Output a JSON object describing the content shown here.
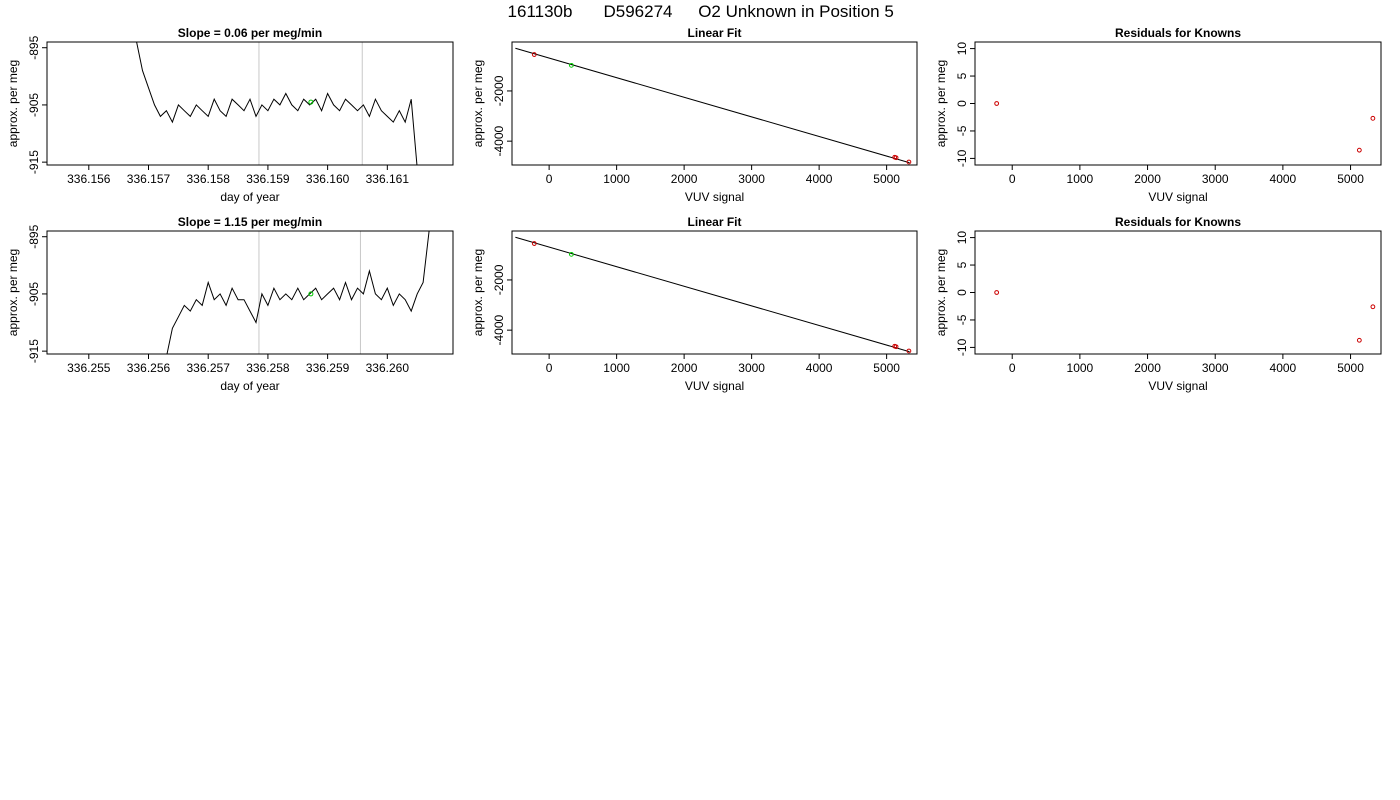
{
  "figure": {
    "title_parts": [
      "161130b",
      "D596274",
      "O2 Unknown in Position  5"
    ]
  },
  "chart_data": [
    {
      "id": "r1c1",
      "type": "line",
      "title": "Slope =  0.06  per meg/min",
      "xlabel": "day of year",
      "ylabel": "approx. per meg",
      "xlim": [
        336.1553,
        336.1621
      ],
      "ylim": [
        -915.5,
        -894
      ],
      "xticks": [
        336.156,
        336.157,
        336.158,
        336.159,
        336.16,
        336.161
      ],
      "xtick_labels": [
        "336.156",
        "336.157",
        "336.158",
        "336.159",
        "336.160",
        "336.161"
      ],
      "yticks": [
        -895,
        -905,
        -915
      ],
      "ytick_labels": [
        "-895",
        "-905",
        "-915"
      ],
      "vlines": [
        336.15885,
        336.16058
      ],
      "highlight": {
        "x": 336.15972,
        "y": -904.5,
        "color": "#00cc00"
      },
      "series": [
        {
          "x": [
            336.1568,
            336.1569,
            336.157,
            336.1571,
            336.1572,
            336.1573,
            336.1574,
            336.1575,
            336.1576,
            336.1577,
            336.1578,
            336.1579,
            336.158,
            336.1581,
            336.1582,
            336.1583,
            336.1584,
            336.1585,
            336.1586,
            336.1587,
            336.1588,
            336.1589,
            336.159,
            336.1591,
            336.1592,
            336.1593,
            336.1594,
            336.1595,
            336.1596,
            336.1597,
            336.1598,
            336.1599,
            336.16,
            336.1601,
            336.1602,
            336.1603,
            336.1604,
            336.1605,
            336.1606,
            336.1607,
            336.1608,
            336.1609,
            336.161,
            336.1611,
            336.1612,
            336.1613,
            336.1614,
            336.1615
          ],
          "y": [
            -894,
            -899,
            -902,
            -905,
            -907,
            -906,
            -908,
            -905,
            -906,
            -907,
            -905,
            -906,
            -907,
            -904,
            -906,
            -907,
            -904,
            -905,
            -906,
            -904,
            -907,
            -905,
            -906,
            -904,
            -905,
            -903,
            -905,
            -906,
            -904,
            -905,
            -904,
            -906,
            -903,
            -905,
            -906,
            -904,
            -905,
            -906,
            -905,
            -907,
            -904,
            -906,
            -907,
            -908,
            -906,
            -908,
            -904,
            -916
          ]
        }
      ]
    },
    {
      "id": "r1c2",
      "type": "scatter",
      "title": "Linear Fit",
      "xlabel": "VUV signal",
      "ylabel": "approx. per meg",
      "xlim": [
        -550,
        5450
      ],
      "ylim": [
        -4950,
        -50
      ],
      "xticks": [
        0,
        1000,
        2000,
        3000,
        4000,
        5000
      ],
      "xtick_labels": [
        "0",
        "1000",
        "2000",
        "3000",
        "4000",
        "5000"
      ],
      "yticks": [
        -2000,
        -4000
      ],
      "ytick_labels": [
        "-2000",
        "-4000"
      ],
      "fit_line": {
        "x": [
          -500,
          5340
        ],
        "y": [
          -300,
          -4860
        ]
      },
      "series": [
        {
          "name": "",
          "color": "#cc0000",
          "x": [
            -220,
            5120,
            5140,
            5330
          ],
          "y": [
            -550,
            -4640,
            -4660,
            -4830
          ]
        },
        {
          "name": "",
          "color": "#00cc00",
          "x": [
            330
          ],
          "y": [
            -980
          ]
        }
      ]
    },
    {
      "id": "r1c3",
      "type": "scatter",
      "title": "Residuals for Knowns",
      "xlabel": "VUV signal",
      "ylabel": "approx. per meg",
      "xlim": [
        -550,
        5450
      ],
      "ylim": [
        -11.2,
        11.2
      ],
      "xticks": [
        0,
        1000,
        2000,
        3000,
        4000,
        5000
      ],
      "xtick_labels": [
        "0",
        "1000",
        "2000",
        "3000",
        "4000",
        "5000"
      ],
      "yticks": [
        10,
        5,
        0,
        -5,
        -10
      ],
      "ytick_labels": [
        "10",
        "5",
        "0",
        "-5",
        "-10"
      ],
      "series": [
        {
          "name": "",
          "color": "#cc0000",
          "x": [
            -230,
            5130,
            5330
          ],
          "y": [
            0,
            -8.5,
            -2.7
          ]
        }
      ]
    },
    {
      "id": "r2c1",
      "type": "line",
      "title": "Slope =  1.15  per meg/min",
      "xlabel": "day of year",
      "ylabel": "approx. per meg",
      "xlim": [
        336.2543,
        336.2611
      ],
      "ylim": [
        -915.5,
        -894
      ],
      "xticks": [
        336.255,
        336.256,
        336.257,
        336.258,
        336.259,
        336.26
      ],
      "xtick_labels": [
        "336.255",
        "336.256",
        "336.257",
        "336.258",
        "336.259",
        "336.260"
      ],
      "yticks": [
        -895,
        -905,
        -915
      ],
      "ytick_labels": [
        "-895",
        "-905",
        "-915"
      ],
      "vlines": [
        336.25785,
        336.25955
      ],
      "highlight": {
        "x": 336.25872,
        "y": -905,
        "color": "#00cc00"
      },
      "series": [
        {
          "x": [
            336.2541,
            336.255,
            336.2556,
            336.2563,
            336.2564,
            336.2565,
            336.2566,
            336.2567,
            336.2568,
            336.2569,
            336.257,
            336.2571,
            336.2572,
            336.2573,
            336.2574,
            336.2575,
            336.2576,
            336.2577,
            336.2578,
            336.2579,
            336.258,
            336.2581,
            336.2582,
            336.2583,
            336.2584,
            336.2585,
            336.2586,
            336.2587,
            336.2588,
            336.2589,
            336.259,
            336.2591,
            336.2592,
            336.2593,
            336.2594,
            336.2595,
            336.2596,
            336.2597,
            336.2598,
            336.2599,
            336.26,
            336.2601,
            336.2602,
            336.2603,
            336.2604,
            336.2605,
            336.2606,
            336.2607
          ],
          "y": [
            -916,
            -916,
            -916,
            -916,
            -911,
            -909,
            -907,
            -908,
            -906,
            -907,
            -903,
            -906,
            -905,
            -907,
            -904,
            -906,
            -906,
            -908,
            -910,
            -905,
            -907,
            -904,
            -906,
            -905,
            -906,
            -904,
            -906,
            -905,
            -904,
            -906,
            -905,
            -904,
            -906,
            -903,
            -906,
            -904,
            -905,
            -901,
            -905,
            -906,
            -904,
            -907,
            -905,
            -906,
            -908,
            -905,
            -903,
            -894
          ]
        }
      ]
    },
    {
      "id": "r2c2",
      "type": "scatter",
      "title": "Linear Fit",
      "xlabel": "VUV signal",
      "ylabel": "approx. per meg",
      "xlim": [
        -550,
        5450
      ],
      "ylim": [
        -4950,
        -50
      ],
      "xticks": [
        0,
        1000,
        2000,
        3000,
        4000,
        5000
      ],
      "xtick_labels": [
        "0",
        "1000",
        "2000",
        "3000",
        "4000",
        "5000"
      ],
      "yticks": [
        -2000,
        -4000
      ],
      "ytick_labels": [
        "-2000",
        "-4000"
      ],
      "fit_line": {
        "x": [
          -500,
          5340
        ],
        "y": [
          -300,
          -4860
        ]
      },
      "series": [
        {
          "name": "",
          "color": "#cc0000",
          "x": [
            -220,
            5120,
            5140,
            5330
          ],
          "y": [
            -550,
            -4640,
            -4660,
            -4830
          ]
        },
        {
          "name": "",
          "color": "#00cc00",
          "x": [
            330
          ],
          "y": [
            -980
          ]
        }
      ]
    },
    {
      "id": "r2c3",
      "type": "scatter",
      "title": "Residuals for Knowns",
      "xlabel": "VUV signal",
      "ylabel": "approx. per meg",
      "xlim": [
        -550,
        5450
      ],
      "ylim": [
        -11.2,
        11.2
      ],
      "xticks": [
        0,
        1000,
        2000,
        3000,
        4000,
        5000
      ],
      "xtick_labels": [
        "0",
        "1000",
        "2000",
        "3000",
        "4000",
        "5000"
      ],
      "yticks": [
        10,
        5,
        0,
        -5,
        -10
      ],
      "ytick_labels": [
        "10",
        "5",
        "0",
        "-5",
        "-10"
      ],
      "series": [
        {
          "name": "",
          "color": "#cc0000",
          "x": [
            -230,
            5130,
            5330
          ],
          "y": [
            0,
            -8.7,
            -2.6
          ]
        }
      ]
    }
  ]
}
